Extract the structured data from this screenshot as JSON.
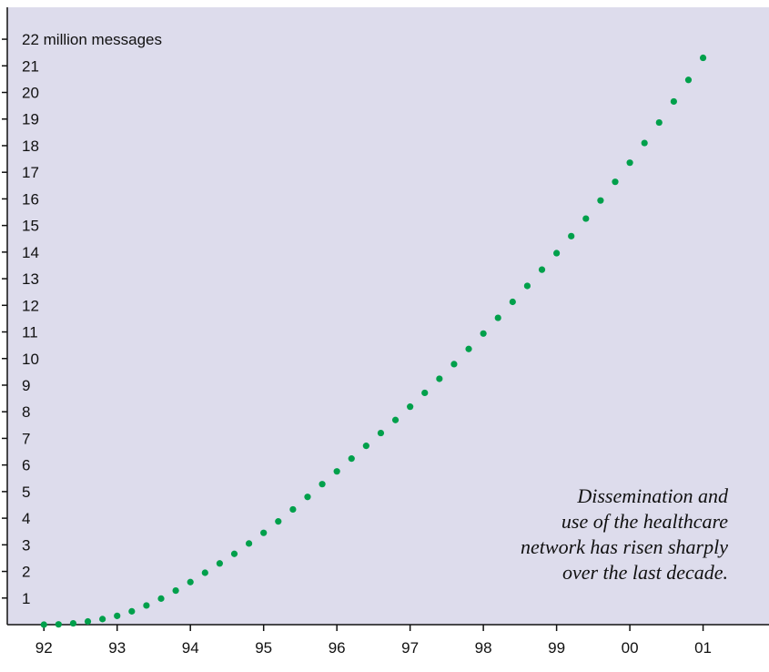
{
  "chart_data": {
    "type": "scatter",
    "title": "",
    "xlabel": "",
    "ylabel": "",
    "x_tick_labels": [
      "92",
      "93",
      "94",
      "95",
      "96",
      "97",
      "98",
      "99",
      "00",
      "01"
    ],
    "y_tick_labels": [
      "1",
      "2",
      "3",
      "4",
      "5",
      "6",
      "7",
      "8",
      "9",
      "10",
      "11",
      "12",
      "13",
      "14",
      "15",
      "16",
      "17",
      "18",
      "19",
      "20",
      "21",
      "22 million messages"
    ],
    "xlim": [
      91.5,
      101.9
    ],
    "ylim": [
      0,
      23.2
    ],
    "grid": false,
    "annotation": [
      "Dissemination and",
      "use of the healthcare",
      "network has risen sharply",
      "over the last decade."
    ],
    "series": [
      {
        "x": [
          92.0,
          92.2,
          92.4,
          92.6,
          92.8,
          93.0,
          93.2,
          93.4,
          93.6,
          93.8,
          94.0,
          94.2,
          94.4,
          94.6,
          94.8,
          95.0,
          95.2,
          95.4,
          95.6,
          95.8,
          96.0,
          96.2,
          96.4,
          96.6,
          96.8,
          97.0,
          97.2,
          97.4,
          97.6,
          97.8,
          98.0,
          98.2,
          98.4,
          98.6,
          98.8,
          99.0,
          99.2,
          99.4,
          99.6,
          99.8,
          100.0,
          100.2,
          100.4,
          100.6,
          100.8,
          101.0
        ],
        "y": [
          0.0,
          0.01,
          0.05,
          0.12,
          0.21,
          0.33,
          0.5,
          0.72,
          0.98,
          1.28,
          1.6,
          1.95,
          2.3,
          2.66,
          3.05,
          3.45,
          3.88,
          4.33,
          4.8,
          5.28,
          5.76,
          6.24,
          6.72,
          7.2,
          7.69,
          8.19,
          8.71,
          9.24,
          9.79,
          10.36,
          10.94,
          11.53,
          12.13,
          12.73,
          13.34,
          13.96,
          14.6,
          15.26,
          15.94,
          16.64,
          17.36,
          18.1,
          18.87,
          19.66,
          20.47,
          21.3
        ],
        "color": "#00a04b"
      }
    ],
    "colors": {
      "plot_background": "#dddcec",
      "axis": "#111111",
      "dots": "#00a04b"
    }
  }
}
